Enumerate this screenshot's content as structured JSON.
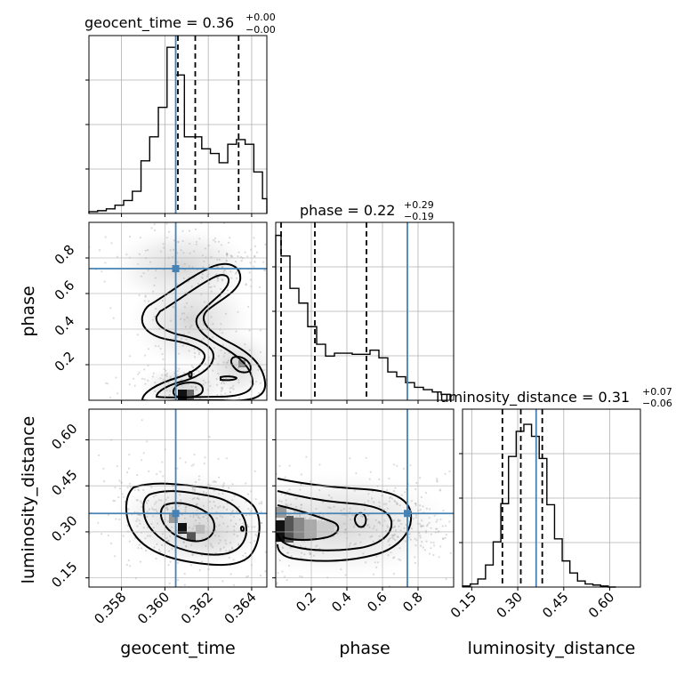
{
  "truth_color": "#4682b4",
  "chart_data": {
    "type": "corner",
    "parameters": [
      "geocent_time",
      "phase",
      "luminosity_distance"
    ],
    "truths": {
      "geocent_time": 0.3605,
      "phase": 0.74,
      "luminosity_distance": 0.36
    },
    "ranges": {
      "geocent_time": [
        0.3565,
        0.3647
      ],
      "phase": [
        0.0,
        1.0
      ],
      "luminosity_distance": [
        0.12,
        0.7
      ]
    },
    "ticks": {
      "geocent_time": {
        "values": [
          0.358,
          0.36,
          0.362,
          0.364
        ],
        "labels": [
          "0.358",
          "0.360",
          "0.362",
          "0.364"
        ]
      },
      "phase": {
        "values": [
          0.2,
          0.4,
          0.6,
          0.8
        ],
        "labels": [
          "0.2",
          "0.4",
          "0.6",
          "0.8"
        ]
      },
      "luminosity_distance": {
        "values": [
          0.15,
          0.3,
          0.45,
          0.6
        ],
        "labels": [
          "0.15",
          "0.30",
          "0.45",
          "0.60"
        ]
      }
    },
    "titles": {
      "geocent_time": {
        "text": "geocent_time = 0.36",
        "plus": "+0.00",
        "minus": "−0.00"
      },
      "phase": {
        "text": "phase = 0.22",
        "plus": "+0.29",
        "minus": "−0.19"
      },
      "luminosity_distance": {
        "text": "luminosity_distance = 0.31",
        "plus": "+0.07",
        "minus": "−0.06"
      }
    },
    "quantiles": {
      "geocent_time": [
        0.3606,
        0.3614,
        0.3634
      ],
      "phase": [
        0.03,
        0.22,
        0.51
      ],
      "luminosity_distance": [
        0.25,
        0.31,
        0.38
      ]
    },
    "histograms": {
      "geocent_time": {
        "edges": [
          0.3565,
          0.3569,
          0.3573,
          0.3577,
          0.3581,
          0.3585,
          0.3589,
          0.3593,
          0.3597,
          0.3601,
          0.3605,
          0.3609,
          0.3613,
          0.3617,
          0.3621,
          0.3625,
          0.3629,
          0.3633,
          0.3637,
          0.3641,
          0.3645,
          0.3649
        ],
        "counts": [
          2,
          3,
          5,
          9,
          14,
          24,
          57,
          83,
          115,
          180,
          150,
          83,
          83,
          70,
          65,
          55,
          75,
          80,
          75,
          45,
          16
        ]
      },
      "phase": {
        "edges": [
          0.0,
          0.03,
          0.08,
          0.13,
          0.18,
          0.23,
          0.28,
          0.33,
          0.38,
          0.43,
          0.48,
          0.53,
          0.58,
          0.63,
          0.68,
          0.73,
          0.78,
          0.83,
          0.88,
          0.93,
          0.98
        ],
        "counts": [
          280,
          245,
          190,
          165,
          125,
          95,
          75,
          80,
          80,
          78,
          78,
          85,
          72,
          48,
          40,
          30,
          22,
          18,
          14,
          10
        ]
      },
      "luminosity_distance": {
        "edges": [
          0.12,
          0.145,
          0.17,
          0.195,
          0.22,
          0.245,
          0.27,
          0.295,
          0.32,
          0.345,
          0.37,
          0.395,
          0.42,
          0.445,
          0.47,
          0.495,
          0.52,
          0.545,
          0.57,
          0.595,
          0.62
        ],
        "counts": [
          1,
          3,
          8,
          22,
          45,
          83,
          130,
          155,
          162,
          150,
          128,
          82,
          48,
          26,
          14,
          6,
          3,
          2,
          1,
          0
        ]
      }
    },
    "hist_ylim": {
      "geocent_time": [
        0,
        185
      ],
      "phase": [
        0,
        290
      ],
      "luminosity_distance": [
        0,
        170
      ]
    },
    "grid": true,
    "legend": "none"
  }
}
